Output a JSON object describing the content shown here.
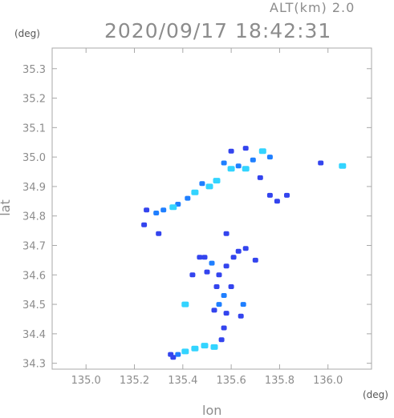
{
  "header": {
    "alt_label": "ALT(km) 2.0",
    "timestamp": "2020/09/17 18:42:31"
  },
  "chart_data": {
    "type": "scatter",
    "title": "2020/09/17 18:42:31",
    "xlabel": "lon",
    "ylabel": "lat",
    "xunit": "(deg)",
    "yunit": "(deg)",
    "xlim": [
      134.86,
      136.18
    ],
    "ylim": [
      34.28,
      35.37
    ],
    "xticks": [
      135.0,
      135.2,
      135.4,
      135.6,
      135.8,
      136.0
    ],
    "xtick_labels": [
      "135.0",
      "135.2",
      "135.4",
      "135.6",
      "135.8",
      "136.0"
    ],
    "yticks": [
      34.3,
      34.4,
      34.5,
      34.6,
      34.7,
      34.8,
      34.9,
      35.0,
      35.1,
      35.2,
      35.3
    ],
    "ytick_labels": [
      "34.3",
      "34.4",
      "34.5",
      "34.6",
      "34.7",
      "34.8",
      "34.9",
      "35.0",
      "35.1",
      "35.2",
      "35.3"
    ],
    "grid": false,
    "colors": {
      "low": "#3344ee",
      "mid": "#1f7fff",
      "high": "#33d4ff",
      "axis": "#a8a8a8",
      "text": "#8c8c8c"
    },
    "cells": [
      {
        "lon": 135.73,
        "lat": 35.02,
        "level": "high"
      },
      {
        "lon": 135.76,
        "lat": 35.0,
        "level": "mid"
      },
      {
        "lon": 135.69,
        "lat": 34.99,
        "level": "mid"
      },
      {
        "lon": 135.66,
        "lat": 34.96,
        "level": "high"
      },
      {
        "lon": 135.63,
        "lat": 34.97,
        "level": "mid"
      },
      {
        "lon": 135.6,
        "lat": 34.96,
        "level": "high"
      },
      {
        "lon": 135.57,
        "lat": 34.98,
        "level": "mid"
      },
      {
        "lon": 135.54,
        "lat": 34.92,
        "level": "high"
      },
      {
        "lon": 135.51,
        "lat": 34.9,
        "level": "high"
      },
      {
        "lon": 135.48,
        "lat": 34.91,
        "level": "mid"
      },
      {
        "lon": 135.45,
        "lat": 34.88,
        "level": "high"
      },
      {
        "lon": 135.42,
        "lat": 34.86,
        "level": "mid"
      },
      {
        "lon": 135.38,
        "lat": 34.84,
        "level": "mid"
      },
      {
        "lon": 135.36,
        "lat": 34.83,
        "level": "high"
      },
      {
        "lon": 135.32,
        "lat": 34.82,
        "level": "mid"
      },
      {
        "lon": 135.29,
        "lat": 34.81,
        "level": "mid"
      },
      {
        "lon": 135.25,
        "lat": 34.82,
        "level": "low"
      },
      {
        "lon": 135.72,
        "lat": 34.93,
        "level": "low"
      },
      {
        "lon": 135.76,
        "lat": 34.87,
        "level": "low"
      },
      {
        "lon": 135.79,
        "lat": 34.85,
        "level": "low"
      },
      {
        "lon": 135.83,
        "lat": 34.87,
        "level": "low"
      },
      {
        "lon": 135.97,
        "lat": 34.98,
        "level": "low"
      },
      {
        "lon": 136.06,
        "lat": 34.97,
        "level": "high"
      },
      {
        "lon": 135.6,
        "lat": 35.02,
        "level": "low"
      },
      {
        "lon": 135.66,
        "lat": 35.03,
        "level": "low"
      },
      {
        "lon": 135.49,
        "lat": 34.66,
        "level": "low"
      },
      {
        "lon": 135.52,
        "lat": 34.64,
        "level": "mid"
      },
      {
        "lon": 135.55,
        "lat": 34.6,
        "level": "low"
      },
      {
        "lon": 135.5,
        "lat": 34.61,
        "level": "low"
      },
      {
        "lon": 135.58,
        "lat": 34.63,
        "level": "low"
      },
      {
        "lon": 135.61,
        "lat": 34.66,
        "level": "low"
      },
      {
        "lon": 135.63,
        "lat": 34.68,
        "level": "low"
      },
      {
        "lon": 135.54,
        "lat": 34.56,
        "level": "low"
      },
      {
        "lon": 135.57,
        "lat": 34.53,
        "level": "mid"
      },
      {
        "lon": 135.55,
        "lat": 34.5,
        "level": "mid"
      },
      {
        "lon": 135.53,
        "lat": 34.48,
        "level": "low"
      },
      {
        "lon": 135.58,
        "lat": 34.47,
        "level": "low"
      },
      {
        "lon": 135.6,
        "lat": 34.56,
        "level": "low"
      },
      {
        "lon": 135.65,
        "lat": 34.5,
        "level": "mid"
      },
      {
        "lon": 135.64,
        "lat": 34.46,
        "level": "low"
      },
      {
        "lon": 135.41,
        "lat": 34.5,
        "level": "high"
      },
      {
        "lon": 135.44,
        "lat": 34.6,
        "level": "low"
      },
      {
        "lon": 135.57,
        "lat": 34.42,
        "level": "low"
      },
      {
        "lon": 135.56,
        "lat": 34.38,
        "level": "low"
      },
      {
        "lon": 135.49,
        "lat": 34.36,
        "level": "high"
      },
      {
        "lon": 135.45,
        "lat": 34.35,
        "level": "high"
      },
      {
        "lon": 135.41,
        "lat": 34.34,
        "level": "high"
      },
      {
        "lon": 135.38,
        "lat": 34.33,
        "level": "mid"
      },
      {
        "lon": 135.36,
        "lat": 34.32,
        "level": "low"
      },
      {
        "lon": 135.35,
        "lat": 34.33,
        "level": "low"
      },
      {
        "lon": 135.53,
        "lat": 34.355,
        "level": "high"
      },
      {
        "lon": 135.66,
        "lat": 34.69,
        "level": "low"
      },
      {
        "lon": 135.7,
        "lat": 34.65,
        "level": "low"
      },
      {
        "lon": 135.3,
        "lat": 34.74,
        "level": "low"
      },
      {
        "lon": 135.24,
        "lat": 34.77,
        "level": "low"
      },
      {
        "lon": 135.58,
        "lat": 34.74,
        "level": "low"
      },
      {
        "lon": 135.47,
        "lat": 34.66,
        "level": "low"
      }
    ]
  }
}
